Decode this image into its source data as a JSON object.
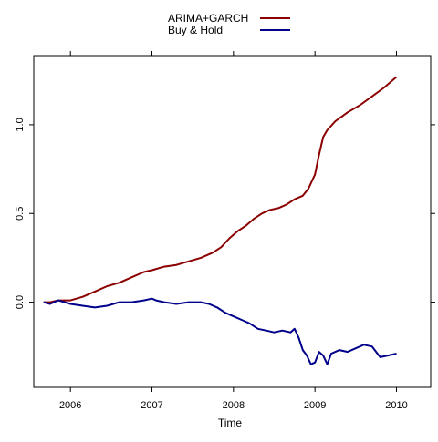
{
  "chart_data": {
    "type": "line",
    "title": "",
    "xlabel": "Time",
    "ylabel": "",
    "xlim": [
      2005.55,
      2010.42
    ],
    "ylim": [
      -0.48,
      1.39
    ],
    "x_ticks": [
      2006,
      2007,
      2008,
      2009,
      2010
    ],
    "x_tick_labels": [
      "2006",
      "2007",
      "2008",
      "2009",
      "2010"
    ],
    "y_ticks": [
      0.0,
      0.5,
      1.0
    ],
    "y_tick_labels": [
      "0.0",
      "0.5",
      "1.0"
    ],
    "grid": false,
    "legend_position": "top-center",
    "series": [
      {
        "name": "ARIMA+GARCH",
        "color": "#8b0000",
        "x": [
          2005.67,
          2005.75,
          2005.85,
          2006.0,
          2006.15,
          2006.3,
          2006.45,
          2006.6,
          2006.75,
          2006.9,
          2007.0,
          2007.15,
          2007.3,
          2007.45,
          2007.6,
          2007.75,
          2007.85,
          2007.95,
          2008.05,
          2008.15,
          2008.25,
          2008.35,
          2008.45,
          2008.55,
          2008.65,
          2008.75,
          2008.85,
          2008.92,
          2009.0,
          2009.05,
          2009.1,
          2009.15,
          2009.25,
          2009.4,
          2009.55,
          2009.7,
          2009.85,
          2010.0
        ],
        "values": [
          0.0,
          0.0,
          0.01,
          0.01,
          0.03,
          0.06,
          0.09,
          0.11,
          0.14,
          0.17,
          0.18,
          0.2,
          0.21,
          0.23,
          0.25,
          0.28,
          0.31,
          0.36,
          0.4,
          0.43,
          0.47,
          0.5,
          0.52,
          0.53,
          0.55,
          0.58,
          0.6,
          0.64,
          0.72,
          0.83,
          0.93,
          0.97,
          1.02,
          1.07,
          1.11,
          1.16,
          1.21,
          1.27
        ]
      },
      {
        "name": "Buy & Hold",
        "color": "#00008b",
        "x": [
          2005.67,
          2005.75,
          2005.85,
          2006.0,
          2006.15,
          2006.3,
          2006.45,
          2006.6,
          2006.75,
          2006.9,
          2007.0,
          2007.05,
          2007.15,
          2007.3,
          2007.45,
          2007.6,
          2007.7,
          2007.8,
          2007.9,
          2008.0,
          2008.1,
          2008.2,
          2008.3,
          2008.4,
          2008.5,
          2008.6,
          2008.7,
          2008.75,
          2008.8,
          2008.85,
          2008.9,
          2008.95,
          2009.0,
          2009.05,
          2009.1,
          2009.15,
          2009.2,
          2009.3,
          2009.4,
          2009.5,
          2009.6,
          2009.7,
          2009.75,
          2009.8,
          2009.9,
          2010.0
        ],
        "values": [
          0.0,
          -0.01,
          0.01,
          -0.01,
          -0.02,
          -0.03,
          -0.02,
          0.0,
          0.0,
          0.01,
          0.02,
          0.01,
          0.0,
          -0.01,
          0.0,
          0.0,
          -0.01,
          -0.03,
          -0.06,
          -0.08,
          -0.1,
          -0.12,
          -0.15,
          -0.16,
          -0.17,
          -0.16,
          -0.17,
          -0.15,
          -0.2,
          -0.27,
          -0.3,
          -0.35,
          -0.34,
          -0.28,
          -0.3,
          -0.35,
          -0.29,
          -0.27,
          -0.28,
          -0.26,
          -0.24,
          -0.25,
          -0.28,
          -0.31,
          -0.3,
          -0.29
        ]
      }
    ]
  }
}
